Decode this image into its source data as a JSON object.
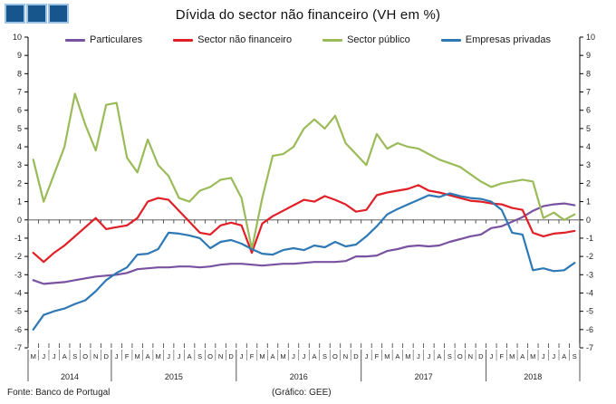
{
  "title": "Dívida do sector não financeiro (VH em %)",
  "logo": {
    "squares": 3,
    "fill_color": "#17568C",
    "border_color": "#9DC3E6"
  },
  "footer": {
    "source": "Fonte: Banco de Portugal",
    "credit": "(Gráfico: GEE)"
  },
  "chart_data": {
    "type": "line",
    "title": "Dívida do sector não financeiro (VH em %)",
    "ylim": [
      -7,
      10
    ],
    "ytick_step": 1,
    "grid": "zero-line-only",
    "legend_position": "top",
    "axis_color": "#000000",
    "zero_line_color": "#808080",
    "x_labels": [
      "M",
      "J",
      "J",
      "A",
      "S",
      "O",
      "N",
      "D",
      "J",
      "F",
      "M",
      "A",
      "M",
      "J",
      "J",
      "A",
      "S",
      "O",
      "N",
      "D",
      "J",
      "F",
      "M",
      "A",
      "M",
      "J",
      "J",
      "A",
      "S",
      "O",
      "N",
      "D",
      "J",
      "F",
      "M",
      "A",
      "M",
      "J",
      "J",
      "A",
      "S",
      "O",
      "N",
      "D",
      "J",
      "F",
      "M",
      "A",
      "M",
      "J",
      "J",
      "A",
      "S"
    ],
    "year_groups": [
      {
        "label": "2014",
        "count": 8
      },
      {
        "label": "2015",
        "count": 12
      },
      {
        "label": "2016",
        "count": 12
      },
      {
        "label": "2017",
        "count": 12
      },
      {
        "label": "2018",
        "count": 9
      }
    ],
    "series": [
      {
        "name": "Particulares",
        "color": "#7852A0",
        "values": [
          -3.3,
          -3.5,
          -3.45,
          -3.4,
          -3.3,
          -3.2,
          -3.1,
          -3.05,
          -3.0,
          -2.9,
          -2.7,
          -2.65,
          -2.6,
          -2.6,
          -2.55,
          -2.55,
          -2.6,
          -2.55,
          -2.45,
          -2.4,
          -2.4,
          -2.45,
          -2.5,
          -2.45,
          -2.4,
          -2.4,
          -2.35,
          -2.3,
          -2.3,
          -2.3,
          -2.25,
          -2.0,
          -2.0,
          -1.95,
          -1.7,
          -1.6,
          -1.45,
          -1.4,
          -1.45,
          -1.4,
          -1.2,
          -1.05,
          -0.9,
          -0.8,
          -0.45,
          -0.35,
          -0.1,
          0.15,
          0.5,
          0.75,
          0.85,
          0.9,
          0.8
        ]
      },
      {
        "name": "Sector não financeiro",
        "color": "#E01F26",
        "values": [
          -1.8,
          -2.3,
          -1.8,
          -1.4,
          -0.9,
          -0.4,
          0.1,
          -0.5,
          -0.4,
          -0.3,
          0.1,
          1.0,
          1.2,
          1.1,
          0.5,
          -0.1,
          -0.7,
          -0.8,
          -0.3,
          -0.15,
          -0.3,
          -1.8,
          -0.2,
          0.2,
          0.5,
          0.8,
          1.1,
          1.0,
          1.3,
          1.1,
          0.85,
          0.45,
          0.55,
          1.35,
          1.5,
          1.6,
          1.7,
          1.9,
          1.6,
          1.5,
          1.35,
          1.2,
          1.05,
          1.0,
          0.9,
          0.85,
          0.65,
          0.55,
          -0.7,
          -0.9,
          -0.75,
          -0.7,
          -0.6
        ]
      },
      {
        "name": "Sector público",
        "color": "#9BBB59",
        "values": [
          3.3,
          1.0,
          2.5,
          4.0,
          6.9,
          5.2,
          3.8,
          6.3,
          6.4,
          3.4,
          2.6,
          4.4,
          3.0,
          2.4,
          1.2,
          1.0,
          1.6,
          1.8,
          2.2,
          2.3,
          1.2,
          -1.6,
          1.2,
          3.5,
          3.6,
          4.0,
          5.0,
          5.5,
          5.0,
          5.7,
          4.2,
          3.6,
          3.0,
          4.7,
          3.9,
          4.2,
          4.0,
          3.9,
          3.6,
          3.3,
          3.1,
          2.9,
          2.5,
          2.1,
          1.8,
          2.0,
          2.1,
          2.2,
          2.1,
          0.1,
          0.4,
          0.0,
          0.3
        ]
      },
      {
        "name": "Empresas privadas",
        "color": "#2E79B5",
        "values": [
          -6.0,
          -5.2,
          -5.0,
          -4.85,
          -4.6,
          -4.4,
          -3.9,
          -3.3,
          -2.9,
          -2.6,
          -1.9,
          -1.85,
          -1.6,
          -0.7,
          -0.75,
          -0.85,
          -1.0,
          -1.55,
          -1.2,
          -1.1,
          -1.3,
          -1.6,
          -1.85,
          -1.9,
          -1.65,
          -1.55,
          -1.65,
          -1.4,
          -1.5,
          -1.2,
          -1.45,
          -1.35,
          -0.9,
          -0.35,
          0.3,
          0.6,
          0.85,
          1.1,
          1.35,
          1.25,
          1.45,
          1.3,
          1.2,
          1.15,
          1.0,
          0.55,
          -0.7,
          -0.8,
          -2.75,
          -2.65,
          -2.8,
          -2.75,
          -2.35
        ]
      }
    ]
  }
}
